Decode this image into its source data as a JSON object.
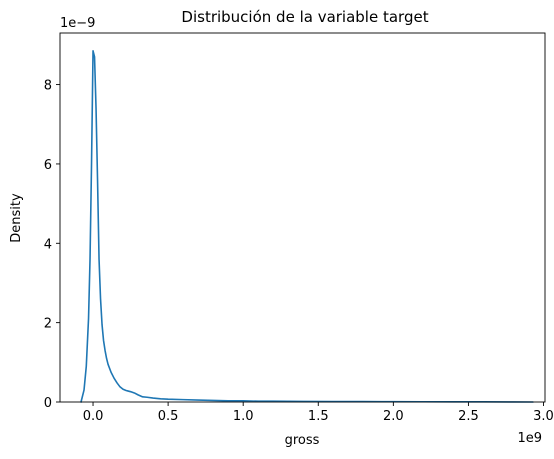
{
  "chart_data": {
    "type": "line",
    "title": "Distribución de la variable target",
    "xlabel": "gross",
    "ylabel": "Density",
    "x_offset_label": "1e9",
    "y_offset_label": "1e−9",
    "xlim": [
      -0.22,
      3.01
    ],
    "ylim": [
      0,
      9.3
    ],
    "x_ticks": [
      0.0,
      0.5,
      1.0,
      1.5,
      2.0,
      2.5,
      3.0
    ],
    "x_tick_labels": [
      "0.0",
      "0.5",
      "1.0",
      "1.5",
      "2.0",
      "2.5",
      "3.0"
    ],
    "y_ticks": [
      0,
      2,
      4,
      6,
      8
    ],
    "y_tick_labels": [
      "0",
      "2",
      "4",
      "6",
      "8"
    ],
    "grid": false,
    "line_color": "#1f77b4",
    "series": [
      {
        "x": [
          -0.08,
          -0.06,
          -0.045,
          -0.03,
          -0.02,
          -0.01,
          0.0,
          0.01,
          0.02,
          0.03,
          0.04,
          0.05,
          0.06,
          0.07,
          0.08,
          0.09,
          0.1,
          0.12,
          0.14,
          0.16,
          0.18,
          0.2,
          0.22,
          0.25,
          0.28,
          0.3,
          0.33,
          0.36,
          0.4,
          0.45,
          0.5,
          0.6,
          0.7,
          0.8,
          0.9,
          1.0,
          1.1,
          1.2,
          1.4,
          1.6,
          1.8,
          2.0,
          2.2,
          2.4,
          2.6,
          2.8,
          2.93
        ],
        "y": [
          0.0,
          0.3,
          0.9,
          2.1,
          3.6,
          6.0,
          8.85,
          8.7,
          7.4,
          5.6,
          3.6,
          2.6,
          1.95,
          1.55,
          1.3,
          1.1,
          0.95,
          0.75,
          0.6,
          0.48,
          0.38,
          0.32,
          0.29,
          0.26,
          0.22,
          0.18,
          0.13,
          0.12,
          0.1,
          0.08,
          0.07,
          0.06,
          0.05,
          0.04,
          0.03,
          0.03,
          0.02,
          0.02,
          0.015,
          0.012,
          0.01,
          0.008,
          0.006,
          0.005,
          0.004,
          0.002,
          0.0
        ]
      }
    ]
  }
}
